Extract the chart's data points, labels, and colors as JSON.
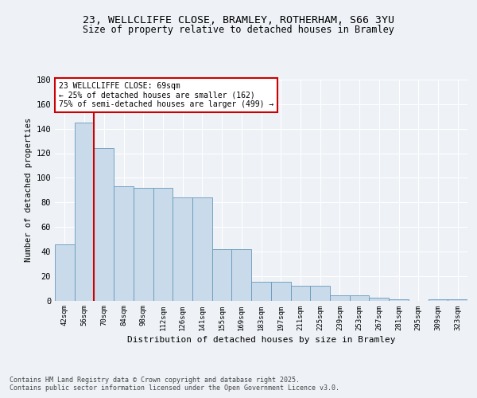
{
  "title_line1": "23, WELLCLIFFE CLOSE, BRAMLEY, ROTHERHAM, S66 3YU",
  "title_line2": "Size of property relative to detached houses in Bramley",
  "xlabel": "Distribution of detached houses by size in Bramley",
  "ylabel": "Number of detached properties",
  "categories": [
    "42sqm",
    "56sqm",
    "70sqm",
    "84sqm",
    "98sqm",
    "112sqm",
    "126sqm",
    "141sqm",
    "155sqm",
    "169sqm",
    "183sqm",
    "197sqm",
    "211sqm",
    "225sqm",
    "239sqm",
    "253sqm",
    "267sqm",
    "281sqm",
    "295sqm",
    "309sqm",
    "323sqm"
  ],
  "values": [
    46,
    145,
    124,
    93,
    92,
    92,
    84,
    84,
    42,
    42,
    15,
    15,
    12,
    12,
    4,
    4,
    2,
    1,
    0,
    1,
    1
  ],
  "bar_color": "#c9daea",
  "bar_edge_color": "#6699bb",
  "vline_x_index": 1.5,
  "vline_color": "#cc0000",
  "annotation_text": "23 WELLCLIFFE CLOSE: 69sqm\n← 25% of detached houses are smaller (162)\n75% of semi-detached houses are larger (499) →",
  "annotation_box_color": "#ffffff",
  "annotation_box_edge": "#cc0000",
  "footer_text": "Contains HM Land Registry data © Crown copyright and database right 2025.\nContains public sector information licensed under the Open Government Licence v3.0.",
  "ylim": [
    0,
    180
  ],
  "yticks": [
    0,
    20,
    40,
    60,
    80,
    100,
    120,
    140,
    160,
    180
  ],
  "background_color": "#eef2f7",
  "grid_color": "#ffffff"
}
